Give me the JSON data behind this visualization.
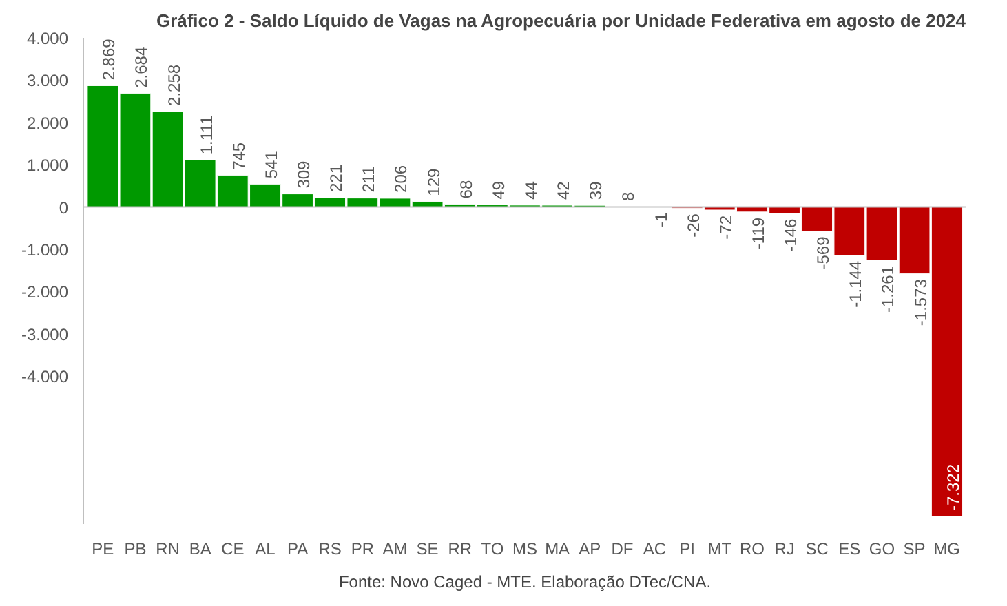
{
  "chart_data": {
    "type": "bar",
    "title": "Gráfico 2 - Saldo Líquido de Vagas na Agropecuária por Unidade Federativa em agosto de 2024",
    "categories": [
      "PE",
      "PB",
      "RN",
      "BA",
      "CE",
      "AL",
      "PA",
      "RS",
      "PR",
      "AM",
      "SE",
      "RR",
      "TO",
      "MS",
      "MA",
      "AP",
      "DF",
      "AC",
      "PI",
      "MT",
      "RO",
      "RJ",
      "SC",
      "ES",
      "GO",
      "SP",
      "MG"
    ],
    "values": [
      2869,
      2684,
      2258,
      1111,
      745,
      541,
      309,
      221,
      211,
      206,
      129,
      68,
      49,
      44,
      42,
      39,
      8,
      -1,
      -26,
      -72,
      -119,
      -146,
      -569,
      -1144,
      -1261,
      -1573,
      -7322
    ],
    "colors": [
      "#009900",
      "#009900",
      "#009900",
      "#009900",
      "#009900",
      "#009900",
      "#009900",
      "#009900",
      "#009900",
      "#009900",
      "#009900",
      "#009900",
      "#009900",
      "#009900",
      "#009900",
      "#009900",
      "#009900",
      "#c00000",
      "#c00000",
      "#c00000",
      "#c00000",
      "#c00000",
      "#c00000",
      "#c00000",
      "#c00000",
      "#c00000",
      "#c00000"
    ],
    "value_labels": [
      "2.869",
      "2.684",
      "2.258",
      "1.111",
      "745",
      "541",
      "309",
      "221",
      "211",
      "206",
      "129",
      "68",
      "49",
      "44",
      "42",
      "39",
      "8",
      "-1",
      "-26",
      "-72",
      "-119",
      "-146",
      "-569",
      "-1.144",
      "-1.261",
      "-1.573",
      "-7.322"
    ],
    "ylim": [
      -7500,
      4000
    ],
    "yticks": [
      {
        "value": -4000,
        "label": "-4.000"
      },
      {
        "value": -3000,
        "label": "-3.000"
      },
      {
        "value": -2000,
        "label": "-2.000"
      },
      {
        "value": -1000,
        "label": "-1.000"
      },
      0,
      {
        "value": 1000,
        "label": "1.000"
      },
      {
        "value": 2000,
        "label": "2.000"
      },
      {
        "value": 3000,
        "label": "3.000"
      },
      {
        "value": 4000,
        "label": "4.000"
      }
    ],
    "grid": false,
    "ref_lines": [
      {
        "axis": "y",
        "value": 0,
        "color": "#bfbfbf"
      }
    ],
    "annotations": [
      "Fonte: Novo Caged - MTE. Elaboração DTec/CNA."
    ]
  }
}
